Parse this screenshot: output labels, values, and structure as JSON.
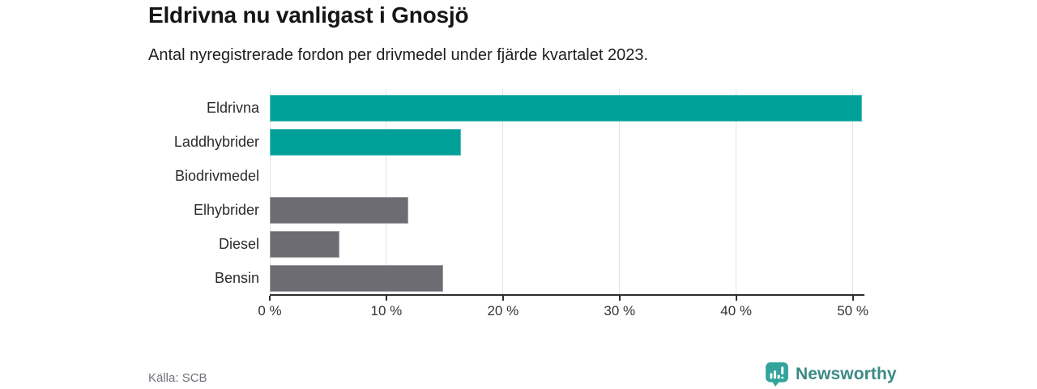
{
  "header": {
    "title": "Eldrivna nu vanligast i Gnosjö",
    "subtitle": "Antal nyregistrerade fordon per drivmedel under fjärde kvartalet 2023."
  },
  "chart_data": {
    "type": "bar",
    "orientation": "horizontal",
    "title": "Eldrivna nu vanligast i Gnosjö",
    "subtitle": "Antal nyregistrerade fordon per drivmedel under fjärde kvartalet 2023.",
    "categories": [
      "Eldrivna",
      "Laddhybrider",
      "Biodrivmedel",
      "Elhybrider",
      "Diesel",
      "Bensin"
    ],
    "values": [
      50.8,
      16.4,
      0,
      11.9,
      6.0,
      14.9
    ],
    "unit": "%",
    "bar_colors": [
      "#00a099",
      "#00a099",
      "#00a099",
      "#6c6c72",
      "#6c6c72",
      "#6c6c72"
    ],
    "x_ticks": [
      0,
      10,
      20,
      30,
      40,
      50
    ],
    "x_tick_labels": [
      "0 %",
      "10 %",
      "20 %",
      "30 %",
      "40 %",
      "50 %"
    ],
    "xlim": [
      0,
      51
    ],
    "grid": "vertical-only",
    "legend": "none",
    "xlabel": "",
    "ylabel": ""
  },
  "footer": {
    "source": "Källa: SCB",
    "brand": "Newsworthy"
  },
  "colors": {
    "accent_teal": "#00a099",
    "neutral_gray": "#6c6c72",
    "brand_teal_icon": "#31a49b",
    "brand_teal_text": "#3b8a85",
    "gridline": "#e3e3e3",
    "axis": "#2e2e2e"
  },
  "icons": {
    "logo_icon": "bar-chart-speech-bubble-icon"
  }
}
